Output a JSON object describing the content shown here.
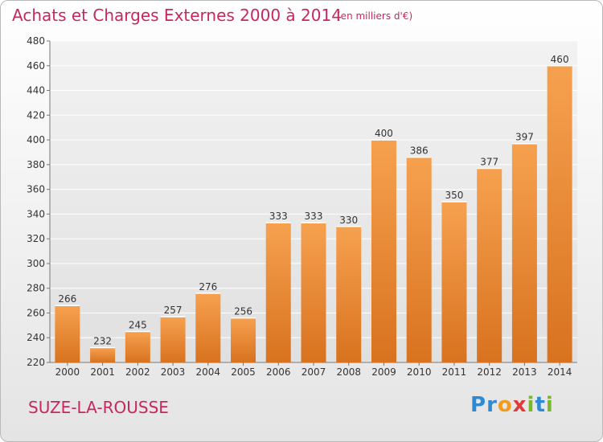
{
  "header": {
    "title": "Achats et Charges Externes 2000 à 2014",
    "subtitle": "(en milliers d'€)"
  },
  "commune": "SUZE-LA-ROUSSE",
  "logo": {
    "letters": [
      "P",
      "r",
      "o",
      "x",
      "i",
      "t",
      "i"
    ],
    "colors": [
      "#2e8bd3",
      "#2e8bd3",
      "#f29b1e",
      "#e03a3a",
      "#7ab828",
      "#2e8bd3",
      "#7ab828"
    ]
  },
  "chart_data": {
    "type": "bar",
    "categories": [
      "2000",
      "2001",
      "2002",
      "2003",
      "2004",
      "2005",
      "2006",
      "2007",
      "2008",
      "2009",
      "2010",
      "2011",
      "2012",
      "2013",
      "2014"
    ],
    "values": [
      266,
      232,
      245,
      257,
      276,
      256,
      333,
      333,
      330,
      400,
      386,
      350,
      377,
      397,
      460
    ],
    "ylim": [
      220,
      480
    ],
    "yticks": [
      220,
      240,
      260,
      280,
      300,
      320,
      340,
      360,
      380,
      400,
      420,
      440,
      460,
      480
    ],
    "grid": true,
    "bar_color": "#f29b44"
  }
}
